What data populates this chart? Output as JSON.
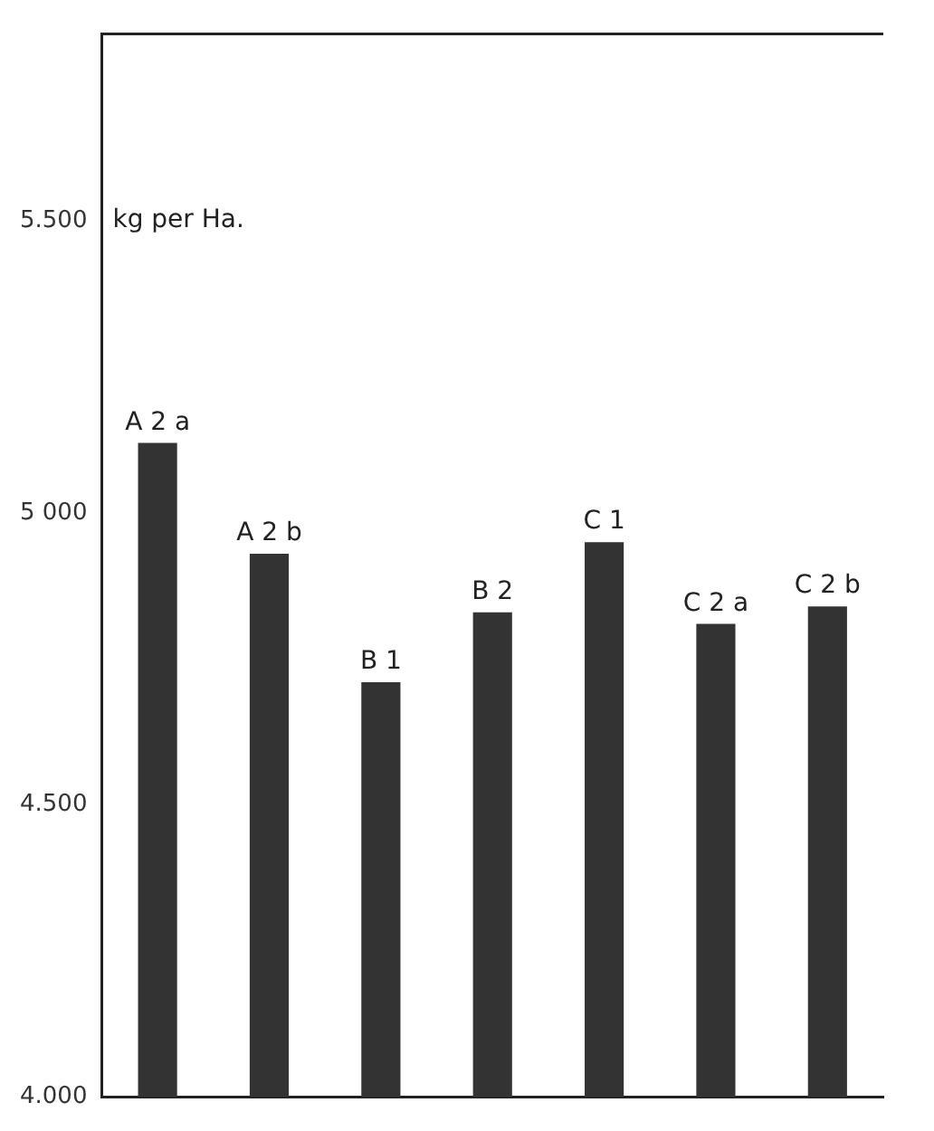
{
  "chart_data": {
    "type": "bar",
    "ylabel": "kg per Ha.",
    "categories": [
      "A 2 a",
      "A 2 b",
      "B 1",
      "B 2",
      "C 1",
      "C 2 a",
      "C 2 b"
    ],
    "values": [
      5120,
      4930,
      4710,
      4830,
      4950,
      4810,
      4840
    ],
    "color": "#333333",
    "ylim": [
      4000,
      5820
    ],
    "yticks": [
      {
        "value": 4000,
        "label": "4.000"
      },
      {
        "value": 4500,
        "label": "4.500"
      },
      {
        "value": 5000,
        "label": "5 000"
      },
      {
        "value": 5500,
        "label": "5.500"
      }
    ],
    "grid": false,
    "legend": false
  }
}
